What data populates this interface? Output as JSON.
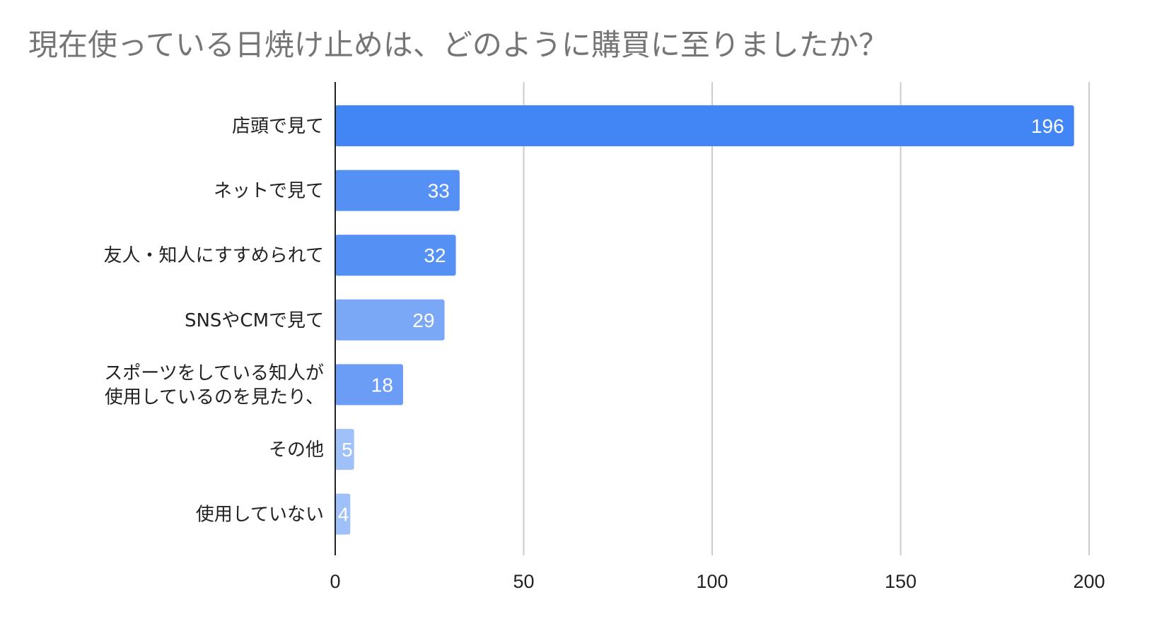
{
  "chart_data": {
    "type": "bar",
    "orientation": "horizontal",
    "title": "現在使っている日焼け止めは、どのように購買に至りましたか？",
    "xlabel": "",
    "ylabel": "",
    "categories": [
      "店頭で見て",
      "ネットで見て",
      "友人・知人にすすめられて",
      "SNSやCMで見て",
      "スポーツをしている知人が使用しているのを見たり、",
      "その他",
      "使用していない"
    ],
    "category_lines": [
      [
        "店頭で見て"
      ],
      [
        "ネットで見て"
      ],
      [
        "友人・知人にすすめられて"
      ],
      [
        "SNSやCMで見て"
      ],
      [
        "スポーツをしている知人が",
        "使用しているのを見たり、"
      ],
      [
        "その他"
      ],
      [
        "使用していない"
      ]
    ],
    "values": [
      196,
      33,
      32,
      29,
      18,
      5,
      4
    ],
    "data_labels": [
      "196",
      "33",
      "32",
      "29",
      "18",
      "5",
      "4"
    ],
    "xlim": [
      0,
      200
    ],
    "xticks": [
      0,
      50,
      100,
      150,
      200
    ],
    "grid": "vertical",
    "legend": "none",
    "colors": {
      "bars": [
        "#4285f4",
        "#5591f5",
        "#5591f5",
        "#7ba7f7",
        "#6c9df6",
        "#a0c0f9",
        "#a0c0f9"
      ],
      "value_labels_inside": "#ffffff",
      "value_label_outside": "#a0c0f9",
      "grid": "#cccccc",
      "axis": "#222222",
      "title": "#757575",
      "text": "#222222"
    }
  }
}
